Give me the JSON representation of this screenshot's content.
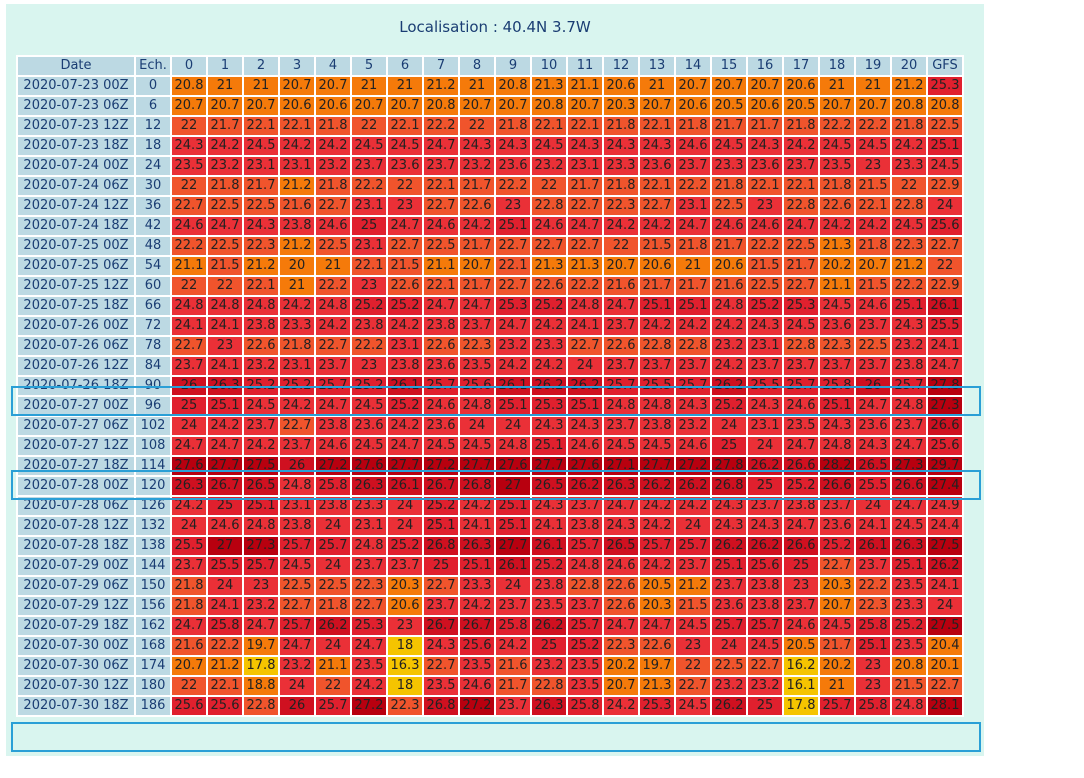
{
  "title": "Localisation : 40.4N 3.7W",
  "table": {
    "headers": [
      "Date",
      "Ech.",
      "0",
      "1",
      "2",
      "3",
      "4",
      "5",
      "6",
      "7",
      "8",
      "9",
      "10",
      "11",
      "12",
      "13",
      "14",
      "15",
      "16",
      "17",
      "18",
      "19",
      "20",
      "GFS"
    ],
    "rows": [
      {
        "date": "2020-07-23 00Z",
        "ech": "0",
        "values": [
          "20.8",
          "21",
          "21",
          "20.7",
          "20.7",
          "21",
          "21",
          "21.2",
          "21",
          "20.8",
          "21.3",
          "21.1",
          "20.6",
          "21",
          "20.7",
          "20.7",
          "20.7",
          "20.6",
          "21",
          "21",
          "21.2",
          "25.3"
        ]
      },
      {
        "date": "2020-07-23 06Z",
        "ech": "6",
        "values": [
          "20.7",
          "20.7",
          "20.7",
          "20.6",
          "20.6",
          "20.7",
          "20.7",
          "20.8",
          "20.7",
          "20.7",
          "20.8",
          "20.7",
          "20.3",
          "20.7",
          "20.6",
          "20.5",
          "20.6",
          "20.5",
          "20.7",
          "20.7",
          "20.8",
          "20.8"
        ]
      },
      {
        "date": "2020-07-23 12Z",
        "ech": "12",
        "values": [
          "22",
          "21.7",
          "22.1",
          "22.1",
          "21.8",
          "22",
          "22.1",
          "22.2",
          "22",
          "21.8",
          "22.1",
          "22.1",
          "21.8",
          "22.1",
          "21.8",
          "21.7",
          "21.7",
          "21.8",
          "22.2",
          "22.2",
          "21.8",
          "22.5"
        ]
      },
      {
        "date": "2020-07-23 18Z",
        "ech": "18",
        "values": [
          "24.3",
          "24.2",
          "24.5",
          "24.2",
          "24.2",
          "24.5",
          "24.5",
          "24.7",
          "24.3",
          "24.3",
          "24.5",
          "24.3",
          "24.3",
          "24.3",
          "24.6",
          "24.5",
          "24.3",
          "24.2",
          "24.5",
          "24.5",
          "24.2",
          "25.1"
        ]
      },
      {
        "date": "2020-07-24 00Z",
        "ech": "24",
        "values": [
          "23.5",
          "23.2",
          "23.1",
          "23.1",
          "23.2",
          "23.7",
          "23.6",
          "23.7",
          "23.2",
          "23.6",
          "23.2",
          "23.1",
          "23.3",
          "23.6",
          "23.7",
          "23.3",
          "23.6",
          "23.7",
          "23.5",
          "23",
          "23.3",
          "24.5"
        ]
      },
      {
        "date": "2020-07-24 06Z",
        "ech": "30",
        "values": [
          "22",
          "21.8",
          "21.7",
          "21.2",
          "21.8",
          "22.2",
          "22",
          "22.1",
          "21.7",
          "22.2",
          "22",
          "21.7",
          "21.8",
          "22.1",
          "22.2",
          "21.8",
          "22.1",
          "22.1",
          "21.8",
          "21.5",
          "22",
          "22.9"
        ]
      },
      {
        "date": "2020-07-24 12Z",
        "ech": "36",
        "values": [
          "22.7",
          "22.5",
          "22.5",
          "21.6",
          "22.7",
          "23.1",
          "23",
          "22.7",
          "22.6",
          "23",
          "22.8",
          "22.7",
          "22.3",
          "22.7",
          "23.1",
          "22.5",
          "23",
          "22.8",
          "22.6",
          "22.1",
          "22.8",
          "24"
        ]
      },
      {
        "date": "2020-07-24 18Z",
        "ech": "42",
        "values": [
          "24.6",
          "24.7",
          "24.3",
          "23.8",
          "24.6",
          "25",
          "24.7",
          "24.6",
          "24.2",
          "25.1",
          "24.6",
          "24.7",
          "24.2",
          "24.2",
          "24.7",
          "24.6",
          "24.6",
          "24.7",
          "24.2",
          "24.2",
          "24.5",
          "25.6"
        ]
      },
      {
        "date": "2020-07-25 00Z",
        "ech": "48",
        "values": [
          "22.2",
          "22.5",
          "22.3",
          "21.2",
          "22.5",
          "23.1",
          "22.7",
          "22.5",
          "21.7",
          "22.7",
          "22.7",
          "22.7",
          "22",
          "21.5",
          "21.8",
          "21.7",
          "22.2",
          "22.5",
          "21.3",
          "21.8",
          "22.3",
          "22.7"
        ]
      },
      {
        "date": "2020-07-25 06Z",
        "ech": "54",
        "values": [
          "21.1",
          "21.5",
          "21.2",
          "20",
          "21",
          "22.1",
          "21.5",
          "21.1",
          "20.7",
          "22.1",
          "21.3",
          "21.3",
          "20.7",
          "20.6",
          "21",
          "20.6",
          "21.5",
          "21.7",
          "20.2",
          "20.7",
          "21.2",
          "22"
        ]
      },
      {
        "date": "2020-07-25 12Z",
        "ech": "60",
        "values": [
          "22",
          "22",
          "22.1",
          "21",
          "22.2",
          "23",
          "22.6",
          "22.1",
          "21.7",
          "22.7",
          "22.6",
          "22.2",
          "21.6",
          "21.7",
          "21.7",
          "21.6",
          "22.5",
          "22.7",
          "21.1",
          "21.5",
          "22.2",
          "22.9"
        ]
      },
      {
        "date": "2020-07-25 18Z",
        "ech": "66",
        "values": [
          "24.8",
          "24.8",
          "24.8",
          "24.2",
          "24.8",
          "25.2",
          "25.2",
          "24.7",
          "24.7",
          "25.3",
          "25.2",
          "24.8",
          "24.7",
          "25.1",
          "25.1",
          "24.8",
          "25.2",
          "25.3",
          "24.5",
          "24.6",
          "25.1",
          "26.1"
        ]
      },
      {
        "date": "2020-07-26 00Z",
        "ech": "72",
        "values": [
          "24.1",
          "24.1",
          "23.8",
          "23.3",
          "24.2",
          "23.8",
          "24.2",
          "23.8",
          "23.7",
          "24.7",
          "24.2",
          "24.1",
          "23.7",
          "24.2",
          "24.2",
          "24.2",
          "24.3",
          "24.5",
          "23.6",
          "23.7",
          "24.3",
          "25.5"
        ]
      },
      {
        "date": "2020-07-26 06Z",
        "ech": "78",
        "values": [
          "22.7",
          "23",
          "22.6",
          "21.8",
          "22.7",
          "22.2",
          "23.1",
          "22.6",
          "22.3",
          "23.2",
          "23.3",
          "22.7",
          "22.6",
          "22.8",
          "22.8",
          "23.2",
          "23.1",
          "22.8",
          "22.3",
          "22.5",
          "23.2",
          "24.1"
        ]
      },
      {
        "date": "2020-07-26 12Z",
        "ech": "84",
        "values": [
          "23.7",
          "24.1",
          "23.2",
          "23.1",
          "23.7",
          "23",
          "23.8",
          "23.6",
          "23.5",
          "24.2",
          "24.2",
          "24",
          "23.7",
          "23.7",
          "23.7",
          "24.2",
          "23.7",
          "23.7",
          "23.7",
          "23.7",
          "23.8",
          "24.7"
        ]
      },
      {
        "date": "2020-07-26 18Z",
        "ech": "90",
        "values": [
          "26",
          "26.3",
          "25.2",
          "25.2",
          "25.7",
          "25.2",
          "26.1",
          "25.7",
          "25.6",
          "26.1",
          "26.2",
          "26.2",
          "25.7",
          "25.5",
          "25.7",
          "26.2",
          "25.5",
          "25.7",
          "25.8",
          "26",
          "25.7",
          "27.8"
        ]
      },
      {
        "date": "2020-07-27 00Z",
        "ech": "96",
        "values": [
          "25",
          "25.1",
          "24.5",
          "24.2",
          "24.7",
          "24.5",
          "25.2",
          "24.6",
          "24.8",
          "25.1",
          "25.3",
          "25.1",
          "24.8",
          "24.8",
          "24.3",
          "25.2",
          "24.3",
          "24.6",
          "25.1",
          "24.7",
          "24.8",
          "27.3"
        ]
      },
      {
        "date": "2020-07-27 06Z",
        "ech": "102",
        "values": [
          "24",
          "24.2",
          "23.7",
          "22.7",
          "23.8",
          "23.6",
          "24.2",
          "23.6",
          "24",
          "24",
          "24.3",
          "24.3",
          "23.7",
          "23.8",
          "23.2",
          "24",
          "23.1",
          "23.5",
          "24.3",
          "23.6",
          "23.7",
          "26.6"
        ]
      },
      {
        "date": "2020-07-27 12Z",
        "ech": "108",
        "values": [
          "24.7",
          "24.7",
          "24.2",
          "23.7",
          "24.6",
          "24.5",
          "24.7",
          "24.5",
          "24.5",
          "24.8",
          "25.1",
          "24.6",
          "24.5",
          "24.5",
          "24.6",
          "25",
          "24",
          "24.7",
          "24.8",
          "24.3",
          "24.7",
          "25.6"
        ]
      },
      {
        "date": "2020-07-27 18Z",
        "ech": "114",
        "values": [
          "27.6",
          "27.7",
          "27.5",
          "26",
          "27.2",
          "27.6",
          "27.7",
          "27.2",
          "27.7",
          "27.6",
          "27.7",
          "27.6",
          "27.1",
          "27.7",
          "27.2",
          "27.8",
          "26.2",
          "26.6",
          "28.2",
          "26.5",
          "27.3",
          "29.7"
        ]
      },
      {
        "date": "2020-07-28 00Z",
        "ech": "120",
        "values": [
          "26.3",
          "26.7",
          "26.5",
          "24.8",
          "25.8",
          "26.3",
          "26.1",
          "26.7",
          "26.8",
          "27",
          "26.5",
          "26.2",
          "26.3",
          "26.2",
          "26.2",
          "26.8",
          "25",
          "25.2",
          "26.6",
          "25.5",
          "26.6",
          "27.4"
        ]
      },
      {
        "date": "2020-07-28 06Z",
        "ech": "126",
        "values": [
          "24.2",
          "25",
          "25.1",
          "23.1",
          "23.8",
          "23.3",
          "24",
          "25.2",
          "24.2",
          "25.1",
          "24.3",
          "23.7",
          "24.7",
          "24.2",
          "24.2",
          "24.3",
          "23.7",
          "23.8",
          "23.7",
          "24",
          "24.7",
          "24.9"
        ]
      },
      {
        "date": "2020-07-28 12Z",
        "ech": "132",
        "values": [
          "24",
          "24.6",
          "24.8",
          "23.8",
          "24",
          "23.1",
          "24",
          "25.1",
          "24.1",
          "25.1",
          "24.1",
          "23.8",
          "24.3",
          "24.2",
          "24",
          "24.3",
          "24.3",
          "24.7",
          "23.6",
          "24.1",
          "24.5",
          "24.4"
        ]
      },
      {
        "date": "2020-07-28 18Z",
        "ech": "138",
        "values": [
          "25.5",
          "27",
          "27.3",
          "25.7",
          "25.7",
          "24.8",
          "25.2",
          "26.8",
          "26.3",
          "27.7",
          "26.1",
          "25.7",
          "26.5",
          "25.7",
          "25.7",
          "26.2",
          "26.2",
          "26.6",
          "25.2",
          "26.1",
          "26.3",
          "27.5"
        ]
      },
      {
        "date": "2020-07-29 00Z",
        "ech": "144",
        "values": [
          "23.7",
          "25.5",
          "25.7",
          "24.5",
          "24",
          "23.7",
          "23.7",
          "25",
          "25.1",
          "26.1",
          "25.2",
          "24.8",
          "24.6",
          "24.2",
          "23.7",
          "25.1",
          "25.6",
          "25",
          "22.7",
          "23.7",
          "25.1",
          "26.2"
        ]
      },
      {
        "date": "2020-07-29 06Z",
        "ech": "150",
        "values": [
          "21.8",
          "24",
          "23",
          "22.5",
          "22.5",
          "22.3",
          "20.3",
          "22.7",
          "23.3",
          "24",
          "23.8",
          "22.8",
          "22.6",
          "20.5",
          "21.2",
          "23.7",
          "23.8",
          "23",
          "20.3",
          "22.2",
          "23.5",
          "24.1"
        ]
      },
      {
        "date": "2020-07-29 12Z",
        "ech": "156",
        "values": [
          "21.8",
          "24.1",
          "23.2",
          "22.7",
          "21.8",
          "22.7",
          "20.6",
          "23.7",
          "24.2",
          "23.7",
          "23.5",
          "23.7",
          "22.6",
          "20.3",
          "21.5",
          "23.6",
          "23.8",
          "23.7",
          "20.7",
          "22.3",
          "23.3",
          "24"
        ]
      },
      {
        "date": "2020-07-29 18Z",
        "ech": "162",
        "values": [
          "24.7",
          "25.8",
          "24.7",
          "25.7",
          "26.2",
          "25.3",
          "23",
          "26.7",
          "26.7",
          "25.8",
          "26.2",
          "25.7",
          "24.7",
          "24.7",
          "24.5",
          "25.7",
          "25.7",
          "24.6",
          "24.5",
          "25.8",
          "25.2",
          "27.5"
        ]
      },
      {
        "date": "2020-07-30 00Z",
        "ech": "168",
        "values": [
          "21.6",
          "22.2",
          "19.7",
          "24.7",
          "24",
          "24.7",
          "18",
          "24.3",
          "25.6",
          "24.2",
          "25",
          "25.2",
          "22.3",
          "22.6",
          "23",
          "24",
          "24.5",
          "20.5",
          "21.7",
          "25.1",
          "23.5",
          "20.4"
        ]
      },
      {
        "date": "2020-07-30 06Z",
        "ech": "174",
        "values": [
          "20.7",
          "21.2",
          "17.8",
          "23.2",
          "21.1",
          "23.5",
          "16.3",
          "22.7",
          "23.5",
          "21.6",
          "23.2",
          "23.5",
          "20.2",
          "19.7",
          "22",
          "22.5",
          "22.7",
          "16.2",
          "20.2",
          "23",
          "20.8",
          "20.1"
        ]
      },
      {
        "date": "2020-07-30 12Z",
        "ech": "180",
        "values": [
          "22",
          "22.1",
          "18.8",
          "24",
          "22",
          "24.2",
          "18",
          "23.5",
          "24.6",
          "21.7",
          "22.8",
          "23.5",
          "20.7",
          "21.3",
          "22.7",
          "23.2",
          "23.2",
          "16.1",
          "21",
          "23",
          "21.5",
          "22.7"
        ]
      },
      {
        "date": "2020-07-30 18Z",
        "ech": "186",
        "values": [
          "25.6",
          "25.6",
          "22.8",
          "26",
          "25.7",
          "27.2",
          "22.3",
          "26.8",
          "27.2",
          "23.7",
          "26.3",
          "25.8",
          "24.2",
          "25.3",
          "24.5",
          "26.2",
          "25",
          "17.8",
          "25.7",
          "25.8",
          "24.8",
          "28.1"
        ]
      }
    ]
  },
  "highlighted_rows": [
    "2020-07-26 18Z",
    "2020-07-27 18Z",
    "2020-07-30 18Z"
  ],
  "highlight_color": "#2a9fd6"
}
